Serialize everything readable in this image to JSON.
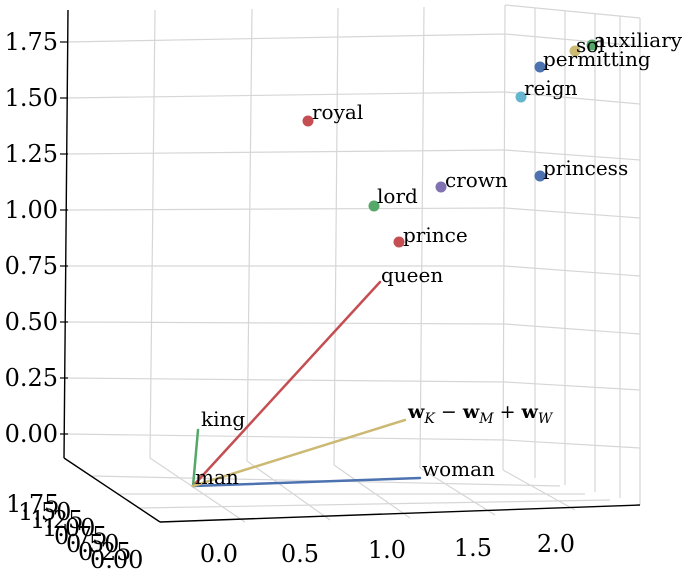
{
  "chart_data": {
    "type": "scatter",
    "projection": "3d",
    "grid": true,
    "title": "",
    "xlabel": "",
    "ylabel": "",
    "zlabel": "",
    "axes": {
      "x_ticks": [
        "0.0",
        "0.5",
        "1.0",
        "1.5",
        "2.0"
      ],
      "y_ticks": [
        "0.00",
        "0.25",
        "0.50",
        "0.75",
        "1.00",
        "1.25",
        "1.50",
        "1.75"
      ],
      "z_ticks": [
        "0.00",
        "0.25",
        "0.50",
        "0.75",
        "1.00",
        "1.25",
        "1.50",
        "1.75"
      ]
    },
    "points": [
      {
        "label": "royal",
        "color": "#c44e52"
      },
      {
        "label": "lord",
        "color": "#55a868"
      },
      {
        "label": "crown",
        "color": "#8172b2"
      },
      {
        "label": "prince",
        "color": "#c44e52"
      },
      {
        "label": "princess",
        "color": "#4c72b0"
      },
      {
        "label": "reign",
        "color": "#64b5cd"
      },
      {
        "label": "permitting",
        "color": "#4c72b0"
      },
      {
        "label": "sol",
        "color": "#ccb974"
      },
      {
        "label": "auxiliary",
        "color": "#55a868"
      }
    ],
    "vectors": [
      {
        "label": "queen",
        "color": "#c44e52"
      },
      {
        "label": "king",
        "color": "#55a868"
      },
      {
        "label": "woman",
        "color": "#4c72b0"
      },
      {
        "label": "w_K − w_M + w_W",
        "color": "#ccb974"
      }
    ],
    "origin_label": "man"
  }
}
